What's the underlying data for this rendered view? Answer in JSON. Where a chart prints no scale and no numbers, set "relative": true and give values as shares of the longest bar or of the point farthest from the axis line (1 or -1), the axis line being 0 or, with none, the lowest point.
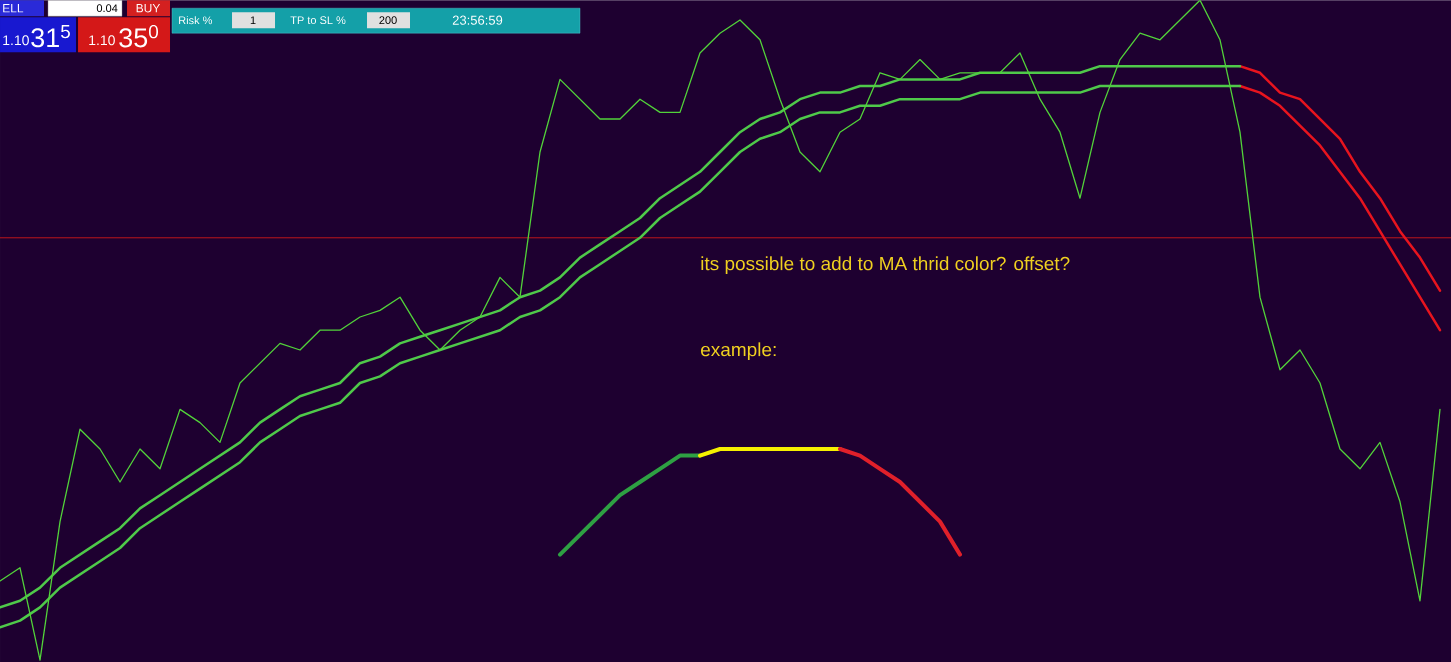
{
  "chart_data": {
    "type": "line",
    "relative": true,
    "annotations": [
      "ELL",
      "0.04",
      "BUY",
      "1.10",
      "31$^{5}$",
      "1.10",
      "35$^{0}$",
      "Risk %",
      "1",
      "TP to SL %",
      "200",
      "23:56:59",
      "its possible to add to MA thrid color? offset?",
      "example:"
    ],
    "categories": [
      null,
      null,
      null,
      null,
      null,
      null,
      null,
      null,
      null,
      null,
      null,
      null,
      null,
      null,
      null,
      null,
      null,
      null,
      null,
      null,
      null,
      null,
      null,
      null,
      null,
      null,
      null,
      null,
      null,
      null,
      null,
      null,
      null,
      null,
      null,
      null,
      null,
      null,
      null,
      null,
      null,
      null,
      null,
      null,
      null,
      null,
      null,
      null,
      null,
      null,
      null,
      null,
      null,
      null,
      null,
      null,
      null,
      null,
      null,
      null,
      null,
      null,
      null,
      null,
      null,
      null,
      null,
      null,
      null,
      null,
      null,
      null,
      null
    ],
    "ref_lines": [
      {
        "axis": "y",
        "value": 0.64,
        "color": "#d01818"
      }
    ],
    "series": [
      {
        "color": "#e8141e",
        "values": [
          null,
          null,
          null,
          null,
          null,
          null,
          null,
          null,
          null,
          null,
          null,
          null,
          null,
          null,
          null,
          null,
          null,
          null,
          null,
          null,
          null,
          null,
          null,
          null,
          null,
          null,
          null,
          null,
          null,
          null,
          null,
          null,
          null,
          null,
          null,
          null,
          null,
          null,
          null,
          null,
          null,
          null,
          null,
          null,
          null,
          null,
          null,
          null,
          null,
          null,
          null,
          null,
          null,
          null,
          null,
          null,
          null,
          null,
          null,
          null,
          null,
          null,
          0.9,
          0.89,
          0.86,
          0.85,
          0.82,
          0.79,
          0.74,
          0.7,
          0.65,
          0.61,
          0.56
        ]
      },
      {
        "color": "#e8141e",
        "values": [
          null,
          null,
          null,
          null,
          null,
          null,
          null,
          null,
          null,
          null,
          null,
          null,
          null,
          null,
          null,
          null,
          null,
          null,
          null,
          null,
          null,
          null,
          null,
          null,
          null,
          null,
          null,
          null,
          null,
          null,
          null,
          null,
          null,
          null,
          null,
          null,
          null,
          null,
          null,
          null,
          null,
          null,
          null,
          null,
          null,
          null,
          null,
          null,
          null,
          null,
          null,
          null,
          null,
          null,
          null,
          null,
          null,
          null,
          null,
          null,
          null,
          null,
          0.87,
          0.86,
          0.84,
          0.81,
          0.78,
          0.74,
          0.7,
          0.65,
          0.6,
          0.55,
          0.5
        ]
      },
      {
        "color": "#4fc94a",
        "values": [
          0.08,
          0.09,
          0.11,
          0.14,
          0.16,
          0.18,
          0.2,
          0.23,
          0.25,
          0.27,
          0.29,
          0.31,
          0.33,
          0.36,
          0.38,
          0.4,
          0.41,
          0.42,
          0.45,
          0.46,
          0.48,
          0.49,
          0.5,
          0.51,
          0.52,
          0.53,
          0.55,
          0.56,
          0.58,
          0.61,
          0.63,
          0.65,
          0.67,
          0.7,
          0.72,
          0.74,
          0.77,
          0.8,
          0.82,
          0.83,
          0.85,
          0.86,
          0.86,
          0.87,
          0.87,
          0.88,
          0.88,
          0.88,
          0.88,
          0.89,
          0.89,
          0.89,
          0.89,
          0.89,
          0.89,
          0.9,
          0.9,
          0.9,
          0.9,
          0.9,
          0.9,
          0.9,
          0.9,
          null,
          null,
          null,
          null,
          null,
          null,
          null,
          null,
          null,
          null
        ]
      },
      {
        "color": "#4fc94a",
        "values": [
          0.05,
          0.06,
          0.08,
          0.11,
          0.13,
          0.15,
          0.17,
          0.2,
          0.22,
          0.24,
          0.26,
          0.28,
          0.3,
          0.33,
          0.35,
          0.37,
          0.38,
          0.39,
          0.42,
          0.43,
          0.45,
          0.46,
          0.47,
          0.48,
          0.49,
          0.5,
          0.52,
          0.53,
          0.55,
          0.58,
          0.6,
          0.62,
          0.64,
          0.67,
          0.69,
          0.71,
          0.74,
          0.77,
          0.79,
          0.8,
          0.82,
          0.83,
          0.83,
          0.84,
          0.84,
          0.85,
          0.85,
          0.85,
          0.85,
          0.86,
          0.86,
          0.86,
          0.86,
          0.86,
          0.86,
          0.87,
          0.87,
          0.87,
          0.87,
          0.87,
          0.87,
          0.87,
          0.87,
          null,
          null,
          null,
          null,
          null,
          null,
          null,
          null,
          null,
          null
        ]
      },
      {
        "color": "#52d23a",
        "values": [
          0.12,
          0.14,
          0.0,
          0.21,
          0.35,
          0.32,
          0.27,
          0.32,
          0.29,
          0.38,
          0.36,
          0.33,
          0.42,
          0.45,
          0.48,
          0.47,
          0.5,
          0.5,
          0.52,
          0.53,
          0.55,
          0.5,
          0.47,
          0.5,
          0.52,
          0.58,
          0.55,
          0.77,
          0.88,
          0.85,
          0.82,
          0.82,
          0.85,
          0.83,
          0.83,
          0.92,
          0.95,
          0.97,
          0.94,
          0.85,
          0.77,
          0.74,
          0.8,
          0.82,
          0.89,
          0.88,
          0.91,
          0.88,
          0.89,
          0.89,
          0.89,
          0.92,
          0.85,
          0.8,
          0.7,
          0.83,
          0.91,
          0.95,
          0.94,
          0.97,
          1.0,
          0.94,
          0.8,
          0.55,
          0.44,
          0.47,
          0.42,
          0.32,
          0.29,
          0.33,
          0.24,
          0.09,
          0.38
        ]
      },
      {
        "color": "#2ea043",
        "values": [
          null,
          null,
          null,
          null,
          null,
          null,
          null,
          null,
          null,
          null,
          null,
          null,
          null,
          null,
          null,
          null,
          null,
          null,
          null,
          null,
          null,
          null,
          null,
          null,
          null,
          null,
          null,
          null,
          0.16,
          0.19,
          0.22,
          0.25,
          0.27,
          0.29,
          0.31,
          0.31,
          null,
          null,
          null,
          null,
          null,
          null,
          null,
          null,
          null,
          null,
          null,
          null,
          null,
          null,
          null,
          null,
          null,
          null,
          null,
          null,
          null,
          null,
          null,
          null,
          null,
          null,
          null,
          null,
          null,
          null,
          null,
          null,
          null,
          null,
          null,
          null,
          null
        ]
      },
      {
        "color": "#f5f000",
        "values": [
          null,
          null,
          null,
          null,
          null,
          null,
          null,
          null,
          null,
          null,
          null,
          null,
          null,
          null,
          null,
          null,
          null,
          null,
          null,
          null,
          null,
          null,
          null,
          null,
          null,
          null,
          null,
          null,
          null,
          null,
          null,
          null,
          null,
          null,
          null,
          0.31,
          0.32,
          0.32,
          0.32,
          0.32,
          0.32,
          0.32,
          0.32,
          null,
          null,
          null,
          null,
          null,
          null,
          null,
          null,
          null,
          null,
          null,
          null,
          null,
          null,
          null,
          null,
          null,
          null,
          null,
          null,
          null,
          null,
          null,
          null,
          null,
          null,
          null,
          null,
          null,
          null
        ]
      },
      {
        "color": "#e0202a",
        "values": [
          null,
          null,
          null,
          null,
          null,
          null,
          null,
          null,
          null,
          null,
          null,
          null,
          null,
          null,
          null,
          null,
          null,
          null,
          null,
          null,
          null,
          null,
          null,
          null,
          null,
          null,
          null,
          null,
          null,
          null,
          null,
          null,
          null,
          null,
          null,
          null,
          null,
          null,
          null,
          null,
          null,
          null,
          0.32,
          0.31,
          0.29,
          0.27,
          0.24,
          0.21,
          0.16,
          null,
          null,
          null,
          null,
          null,
          null,
          null,
          null,
          null,
          null,
          null,
          null,
          null,
          null,
          null,
          null,
          null,
          null,
          null,
          null,
          null,
          null,
          null,
          null
        ]
      }
    ]
  }
}
